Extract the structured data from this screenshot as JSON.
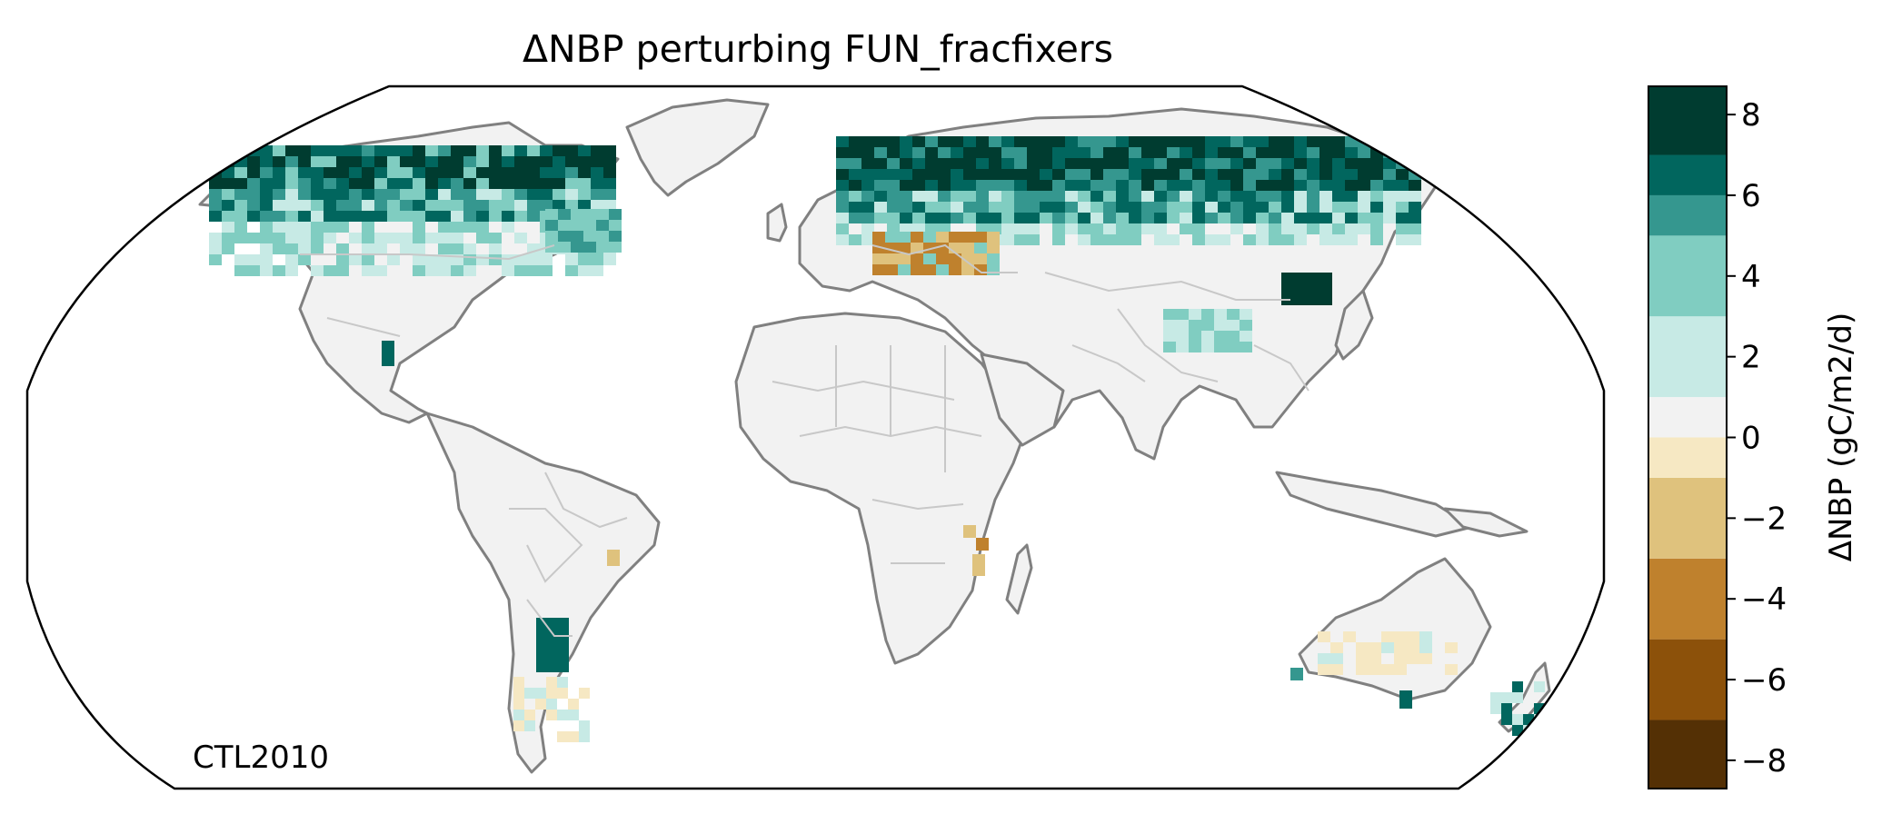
{
  "figure": {
    "title": "ΔNBP perturbing FUN_fracfixers",
    "corner_label": "CTL2010"
  },
  "colorbar": {
    "label": "ΔNBP (gC/m2/d)",
    "ticks": [
      "−8",
      "−6",
      "−4",
      "−2",
      "0",
      "2",
      "4",
      "6",
      "8"
    ],
    "range": [
      -8.7,
      8.7
    ],
    "bins": [
      {
        "from": -8.7,
        "to": -7,
        "color": "#543005"
      },
      {
        "from": -7,
        "to": -5,
        "color": "#8c510a"
      },
      {
        "from": -5,
        "to": -3,
        "color": "#bf812d"
      },
      {
        "from": -3,
        "to": -1,
        "color": "#dfc27d"
      },
      {
        "from": -1,
        "to": 0,
        "color": "#f6e8c3"
      },
      {
        "from": 0,
        "to": 1,
        "color": "#f2f2f2"
      },
      {
        "from": 1,
        "to": 3,
        "color": "#c7eae5"
      },
      {
        "from": 3,
        "to": 5,
        "color": "#80cdc1"
      },
      {
        "from": 5,
        "to": 6,
        "color": "#35978f"
      },
      {
        "from": 6,
        "to": 7,
        "color": "#01665e"
      },
      {
        "from": 7,
        "to": 8.7,
        "color": "#003c30"
      }
    ]
  },
  "map": {
    "projection": "Robinson",
    "colors": {
      "land": "#f2f2f2",
      "coastline": "#808080",
      "borders": "#c8c8c8",
      "frame": "#000000"
    }
  }
}
